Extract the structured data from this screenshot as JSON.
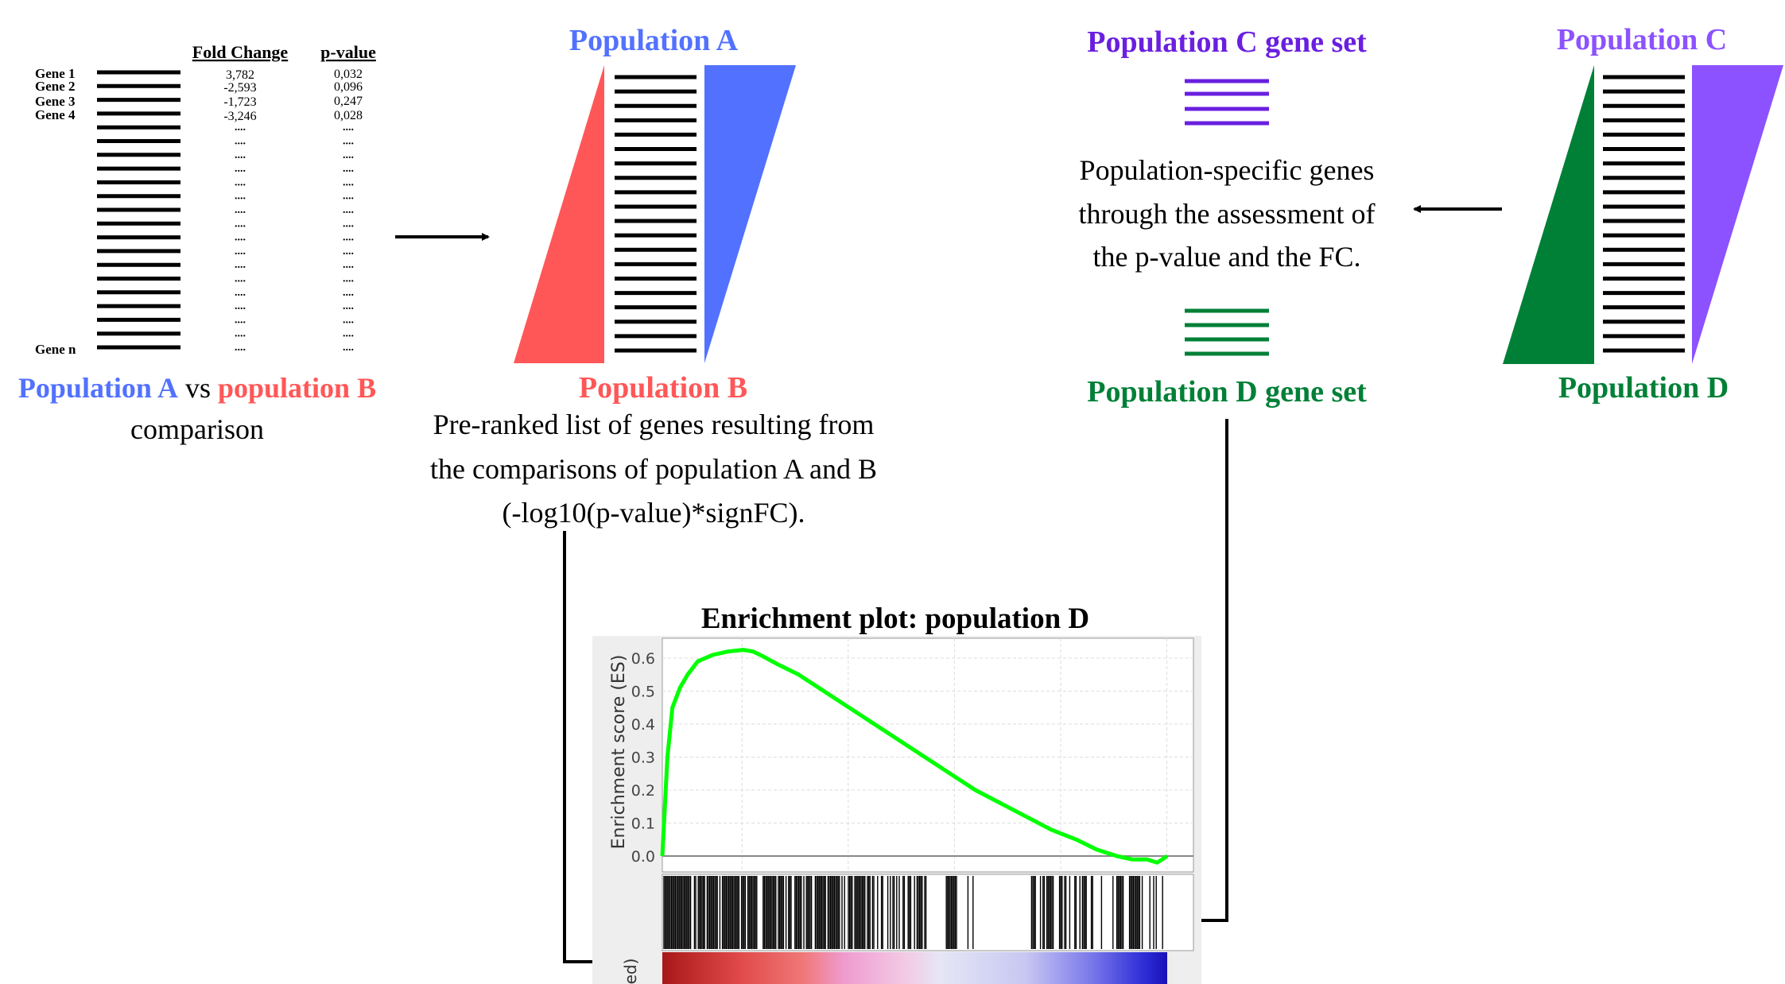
{
  "colors": {
    "pop_a": "#5271ff",
    "pop_b": "#ff5757",
    "pop_c": "#8c52ff",
    "pop_c_text": "#6a1fe0",
    "pop_d": "#008037",
    "curve": "#00ff00"
  },
  "step1": {
    "headers": {
      "fold_change": "Fold Change",
      "p_value": "p-value"
    },
    "genes": [
      {
        "name": "Gene 1",
        "fc": "3,782",
        "p": "0,032"
      },
      {
        "name": "Gene 2",
        "fc": "-2,593",
        "p": "0,096"
      },
      {
        "name": "Gene 3",
        "fc": "-1,723",
        "p": "0,247"
      },
      {
        "name": "Gene 4",
        "fc": "-3,246",
        "p": "0,028"
      }
    ],
    "ellipsis": "....",
    "last_gene": "Gene n",
    "caption": {
      "pop_a": "Population A",
      "vs": "vs",
      "pop_b": "population B",
      "line2": "comparison"
    }
  },
  "step2": {
    "top_label": "Population A",
    "bottom_label": "Population B",
    "caption": [
      "Pre-ranked list of genes resulting from",
      "the comparisons of population A and B",
      "(-log10(p-value)*signFC)."
    ]
  },
  "step3": {
    "top_label": "Population C",
    "bottom_label": "Population D"
  },
  "step4": {
    "c_set": "Population C gene set",
    "d_set": "Population D gene set",
    "text": [
      "Population-specific genes",
      "through the assessment of",
      "the p-value and the FC."
    ]
  },
  "chart_data": {
    "type": "line",
    "title": "Enrichment plot: population D",
    "ylabel": "Enrichment score (ES)",
    "ylim": [
      0,
      0.6
    ],
    "yticks": [
      "0.6",
      "0.5",
      "0.4",
      "0.3",
      "0.2",
      "0.1",
      "0.0"
    ],
    "lower_axis_label": "ed)",
    "series": [
      {
        "x": [
          0,
          0.01,
          0.02,
          0.035,
          0.05,
          0.07,
          0.1,
          0.13,
          0.16,
          0.18,
          0.2,
          0.23,
          0.27,
          0.32,
          0.37,
          0.42,
          0.47,
          0.52,
          0.57,
          0.62,
          0.67,
          0.72,
          0.77,
          0.82,
          0.86,
          0.9,
          0.93,
          0.96,
          0.98,
          0.99,
          1.0
        ],
        "y": [
          0.0,
          0.3,
          0.45,
          0.51,
          0.55,
          0.59,
          0.61,
          0.62,
          0.625,
          0.62,
          0.605,
          0.58,
          0.55,
          0.5,
          0.45,
          0.4,
          0.35,
          0.3,
          0.25,
          0.2,
          0.16,
          0.12,
          0.08,
          0.05,
          0.02,
          0.0,
          -0.01,
          -0.01,
          -0.02,
          -0.01,
          0.0
        ]
      }
    ]
  }
}
